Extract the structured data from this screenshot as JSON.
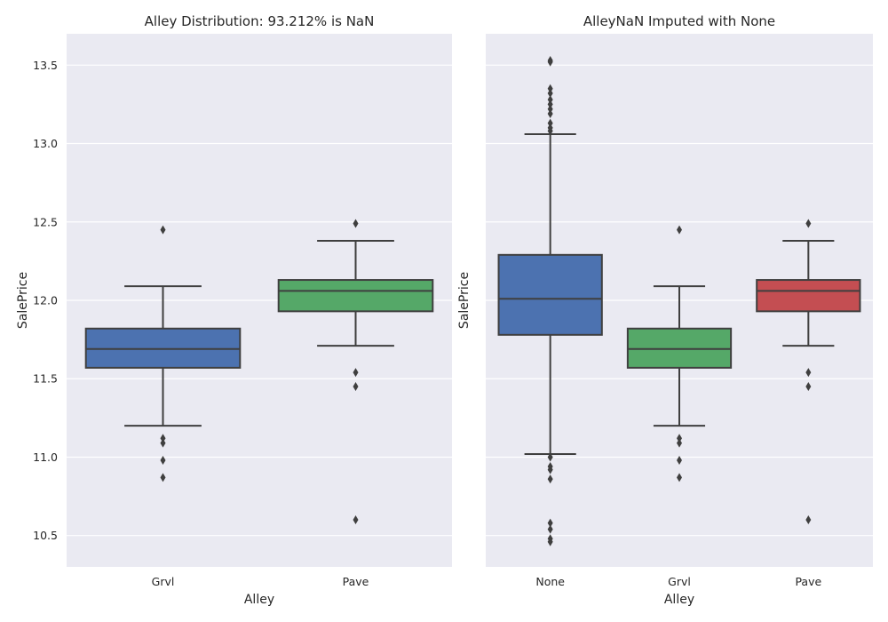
{
  "chart_data": [
    {
      "type": "box",
      "title": "Alley Distribution: 93.212% is NaN",
      "xlabel": "Alley",
      "ylabel": "SalePrice",
      "ylim": [
        10.3,
        13.7
      ],
      "yticks": [
        "10.5",
        "11.0",
        "11.5",
        "12.0",
        "12.5",
        "13.0",
        "13.5"
      ],
      "grid": true,
      "categories": [
        "Grvl",
        "Pave"
      ],
      "boxes": [
        {
          "category": "Grvl",
          "color": "#4c72b0",
          "whisker_low": 11.2,
          "q1": 11.57,
          "median": 11.69,
          "q3": 11.82,
          "whisker_high": 12.09,
          "outliers": [
            12.45,
            11.12,
            11.09,
            10.98,
            10.87
          ]
        },
        {
          "category": "Pave",
          "color": "#55a868",
          "whisker_low": 11.71,
          "q1": 11.93,
          "median": 12.06,
          "q3": 12.13,
          "whisker_high": 12.38,
          "outliers": [
            12.49,
            11.54,
            11.45,
            10.6
          ]
        }
      ]
    },
    {
      "type": "box",
      "title": "AlleyNaN Imputed with None",
      "xlabel": "Alley",
      "ylabel": "SalePrice",
      "ylim": [
        10.3,
        13.7
      ],
      "yticks": [
        "10.5",
        "11.0",
        "11.5",
        "12.0",
        "12.5",
        "13.0",
        "13.5"
      ],
      "grid": true,
      "categories": [
        "None",
        "Grvl",
        "Pave"
      ],
      "boxes": [
        {
          "category": "None",
          "color": "#4c72b0",
          "whisker_low": 11.02,
          "q1": 11.78,
          "median": 12.01,
          "q3": 12.29,
          "whisker_high": 13.06,
          "outliers": [
            13.53,
            13.52,
            13.35,
            13.32,
            13.28,
            13.25,
            13.22,
            13.19,
            13.13,
            13.1,
            13.08,
            11.0,
            10.94,
            10.92,
            10.86,
            10.58,
            10.54,
            10.48,
            10.46
          ]
        },
        {
          "category": "Grvl",
          "color": "#55a868",
          "whisker_low": 11.2,
          "q1": 11.57,
          "median": 11.69,
          "q3": 11.82,
          "whisker_high": 12.09,
          "outliers": [
            12.45,
            11.12,
            11.09,
            10.98,
            10.87
          ]
        },
        {
          "category": "Pave",
          "color": "#c44e52",
          "whisker_low": 11.71,
          "q1": 11.93,
          "median": 12.06,
          "q3": 12.13,
          "whisker_high": 12.38,
          "outliers": [
            12.49,
            11.54,
            11.45,
            10.6
          ]
        }
      ]
    }
  ]
}
